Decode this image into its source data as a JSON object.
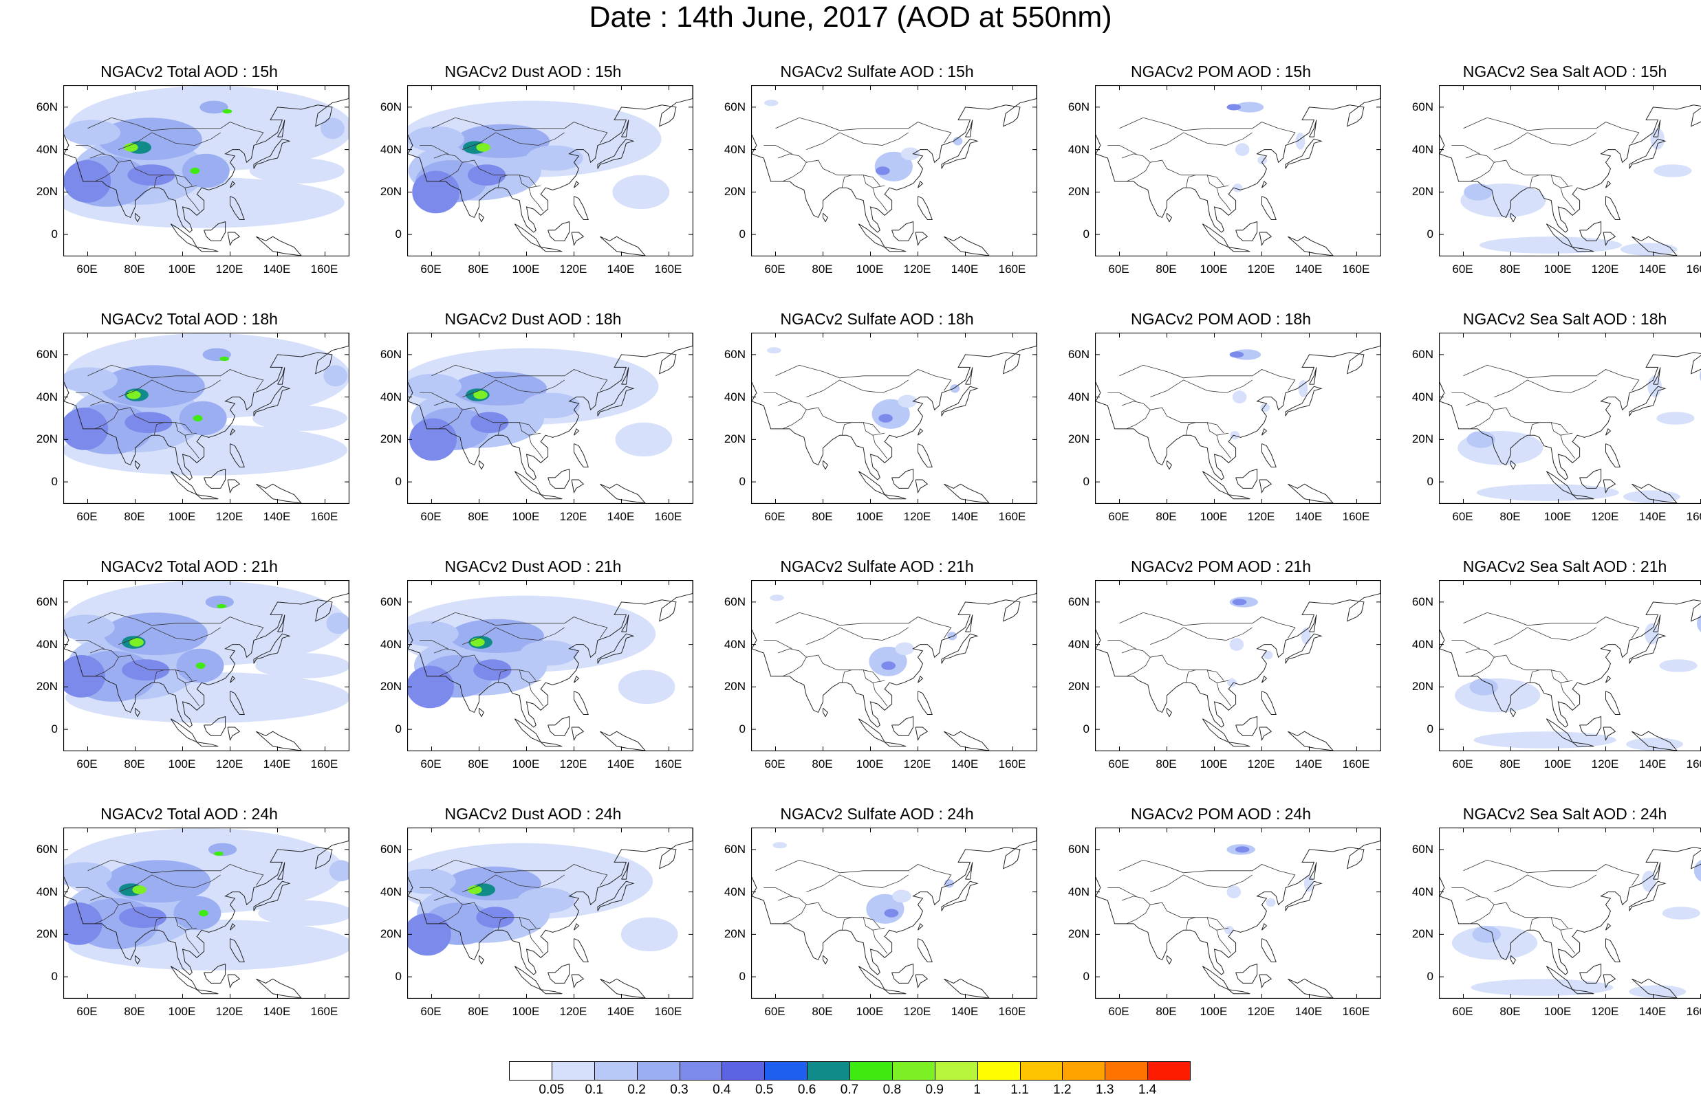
{
  "title": "Date : 14th June, 2017 (AOD at 550nm)",
  "panels": [
    [
      "NGACv2 Total AOD : 15h",
      "NGACv2 Dust AOD : 15h",
      "NGACv2 Sulfate AOD : 15h",
      "NGACv2 POM AOD : 15h",
      "NGACv2 Sea Salt AOD : 15h"
    ],
    [
      "NGACv2 Total AOD : 18h",
      "NGACv2 Dust AOD : 18h",
      "NGACv2 Sulfate AOD : 18h",
      "NGACv2 POM AOD : 18h",
      "NGACv2 Sea Salt AOD : 18h"
    ],
    [
      "NGACv2 Total AOD : 21h",
      "NGACv2 Dust AOD : 21h",
      "NGACv2 Sulfate AOD : 21h",
      "NGACv2 POM AOD : 21h",
      "NGACv2 Sea Salt AOD : 21h"
    ],
    [
      "NGACv2 Total AOD : 24h",
      "NGACv2 Dust AOD : 24h",
      "NGACv2 Sulfate AOD : 24h",
      "NGACv2 POM AOD : 24h",
      "NGACv2 Sea Salt  AOD : 24h"
    ]
  ],
  "lat_labels": [
    "60N",
    "40N",
    "20N",
    "0"
  ],
  "lon_labels": [
    "60E",
    "80E",
    "100E",
    "120E",
    "140E",
    "160E"
  ],
  "colorbar": {
    "colors": [
      "#ffffff",
      "#d6e0fb",
      "#b8c8f7",
      "#9caef2",
      "#7c8aec",
      "#5d64e3",
      "#1f5ff0",
      "#118a8a",
      "#3fea10",
      "#7cf024",
      "#b7f53a",
      "#fffd00",
      "#ffc400",
      "#ffa300",
      "#ff7400",
      "#fe1c00"
    ],
    "labels": [
      "0.05",
      "0.1",
      "0.2",
      "0.3",
      "0.4",
      "0.5",
      "0.6",
      "0.7",
      "0.8",
      "0.9",
      "1",
      "1.1",
      "1.2",
      "1.3",
      "1.4"
    ]
  }
}
